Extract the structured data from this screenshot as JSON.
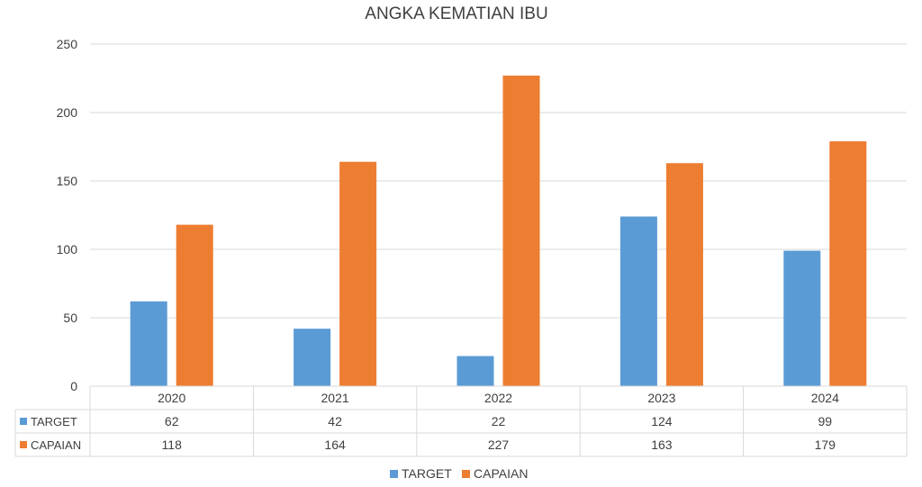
{
  "chart_data": {
    "type": "bar",
    "title": "ANGKA KEMATIAN IBU",
    "xlabel": "",
    "ylabel": "",
    "categories": [
      "2020",
      "2021",
      "2022",
      "2023",
      "2024"
    ],
    "series": [
      {
        "name": "TARGET",
        "color": "#5b9bd5",
        "values": [
          62,
          42,
          22,
          124,
          99
        ]
      },
      {
        "name": "CAPAIAN",
        "color": "#ed7d31",
        "values": [
          118,
          164,
          227,
          163,
          179
        ]
      }
    ],
    "ylim": [
      0,
      250
    ],
    "yticks": [
      0,
      50,
      100,
      150,
      200,
      250
    ],
    "grid": true,
    "legend_position": "bottom",
    "data_table": true,
    "colors": {
      "grid": "#d9d9d9",
      "text": "#404040"
    }
  }
}
